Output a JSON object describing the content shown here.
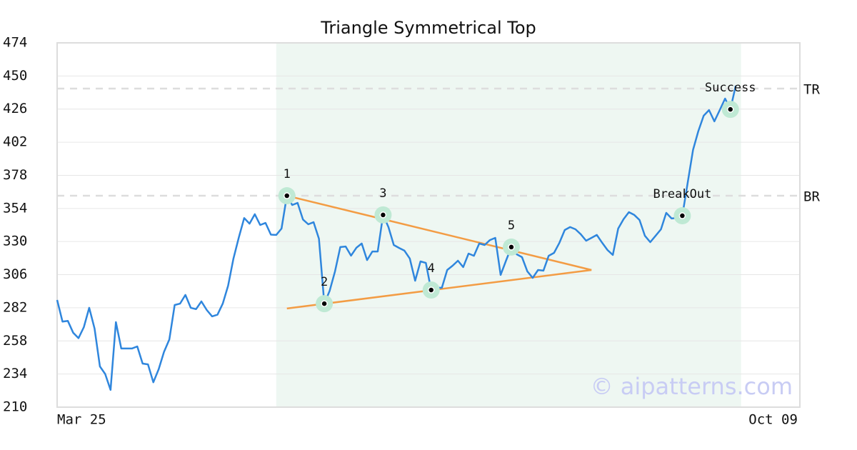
{
  "chart_data": {
    "type": "line",
    "title": "Triangle Symmetrical Top",
    "color": "#2f86dd",
    "values": [
      287.7,
      272,
      272.5,
      264,
      260,
      268,
      282,
      267,
      239.5,
      234,
      222.5,
      271.6,
      252.5,
      252.5,
      252.5,
      254,
      241.6,
      241,
      228,
      237.5,
      250,
      259,
      284,
      285,
      291.3,
      282,
      281,
      286.6,
      280.4,
      275.8,
      277,
      285,
      298,
      317.7,
      333,
      347,
      343,
      349.8,
      342,
      343.5,
      335,
      334.8,
      339.4,
      363.2,
      356.5,
      358,
      346,
      342.5,
      344,
      332,
      285,
      294.3,
      308.4,
      326,
      326.4,
      319.8,
      325.5,
      328.6,
      316.6,
      322.8,
      322.8,
      349.3,
      340.5,
      327.5,
      325.4,
      323.4,
      317.7,
      301.6,
      315.6,
      314.5,
      294.9,
      296.5,
      296.5,
      309.4,
      312.5,
      316.1,
      311.5,
      321.3,
      319.7,
      328.6,
      327.5,
      331.1,
      332.7,
      305.8,
      316.1,
      326,
      320.8,
      318.7,
      308.4,
      303.7,
      309.4,
      308.9,
      319.7,
      321.8,
      329.1,
      338.4,
      340.5,
      338.9,
      335.3,
      330.6,
      332.7,
      334.8,
      329.1,
      323.9,
      320.3,
      339.4,
      346.2,
      351.3,
      349.3,
      345.6,
      334.2,
      329.6,
      334.2,
      338.9,
      350.8,
      346.7,
      347.2,
      348.7,
      372.6,
      396.4,
      410,
      421.2,
      425.3,
      417.1,
      425.3,
      433.6,
      425.8,
      443
    ],
    "xlim": [
      0,
      139
    ],
    "xticks": [
      {
        "value": 0,
        "label": "Mar 25"
      },
      {
        "value": 134,
        "label": "Oct 09"
      }
    ],
    "ylim": [
      210,
      474
    ],
    "yticks": [
      210,
      234,
      258,
      282,
      306,
      330,
      354,
      378,
      402,
      426,
      450,
      474
    ],
    "grid": true,
    "zone": {
      "x": [
        41,
        128
      ],
      "color": "#eef7f2"
    },
    "pattern_points": [
      {
        "label": "1",
        "x": 43,
        "y": 363.2
      },
      {
        "label": "2",
        "x": 50,
        "y": 285
      },
      {
        "label": "3",
        "x": 61,
        "y": 349.3
      },
      {
        "label": "4",
        "x": 70,
        "y": 294.9
      },
      {
        "label": "5",
        "x": 85,
        "y": 326
      },
      {
        "label": "BreakOut",
        "x": 117,
        "y": 348.7
      },
      {
        "label": "Success",
        "x": 126,
        "y": 425.8
      }
    ],
    "trend_lines": {
      "color": "#f39c44",
      "lines": [
        {
          "x": [
            43,
            100
          ],
          "y": [
            363.2,
            309.4
          ]
        },
        {
          "x": [
            43,
            100
          ],
          "y": [
            281.5,
            309.4
          ]
        }
      ]
    },
    "levels": [
      {
        "label": "TR",
        "value": 440.9
      },
      {
        "label": "BR",
        "value": 363.2
      }
    ],
    "watermark": "© aipatterns.com"
  }
}
